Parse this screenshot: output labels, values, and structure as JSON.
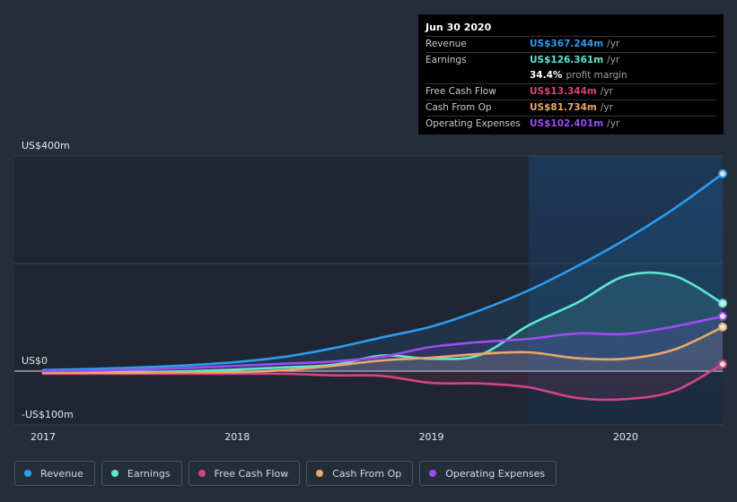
{
  "tooltip": {
    "date": "Jun 30 2020",
    "unit": "/yr",
    "rows": [
      {
        "label": "Revenue",
        "value": "US$367.244m",
        "color": "#2d9bf0"
      },
      {
        "label": "Earnings",
        "value": "US$126.361m",
        "color": "#5ee6d0"
      },
      {
        "label": "",
        "value": "34.4%",
        "suffix": "profit margin",
        "color": "#ffffff"
      },
      {
        "label": "Free Cash Flow",
        "value": "US$13.344m",
        "color": "#d3457f"
      },
      {
        "label": "Cash From Op",
        "value": "US$81.734m",
        "color": "#e8a86a"
      },
      {
        "label": "Operating Expenses",
        "value": "US$102.401m",
        "color": "#9d4cf0"
      }
    ]
  },
  "chart_data": {
    "type": "line",
    "title": "",
    "ylim": [
      -100,
      400
    ],
    "yticks": [
      {
        "value": 400,
        "label": "US$400m"
      },
      {
        "value": 0,
        "label": "US$0"
      },
      {
        "value": -100,
        "label": "-US$100m"
      }
    ],
    "xlim": [
      2017.0,
      2020.5
    ],
    "xticks": [
      {
        "value": 2017,
        "label": "2017"
      },
      {
        "value": 2018,
        "label": "2018"
      },
      {
        "value": 2019,
        "label": "2019"
      },
      {
        "value": 2020,
        "label": "2020"
      }
    ],
    "highlight_start": 2019.5,
    "x": [
      2017.0,
      2017.25,
      2017.5,
      2017.75,
      2018.0,
      2018.25,
      2018.5,
      2018.75,
      2019.0,
      2019.25,
      2019.5,
      2019.75,
      2020.0,
      2020.25,
      2020.5
    ],
    "series": [
      {
        "name": "Revenue",
        "color": "#2d9bf0",
        "values": [
          2,
          4,
          7,
          11,
          17,
          27,
          43,
          63,
          83,
          113,
          150,
          195,
          245,
          302,
          367
        ]
      },
      {
        "name": "Earnings",
        "color": "#5ee6d0",
        "values": [
          -3,
          -3,
          -2,
          0,
          3,
          7,
          12,
          29,
          23,
          30,
          85,
          127,
          177,
          177,
          126
        ]
      },
      {
        "name": "Free Cash Flow",
        "color": "#d3457f",
        "values": [
          -5,
          -5,
          -5,
          -5,
          -5,
          -5,
          -8,
          -9,
          -22,
          -23,
          -30,
          -50,
          -52,
          -37,
          13
        ]
      },
      {
        "name": "Cash From Op",
        "color": "#e8a86a",
        "values": [
          -3,
          -3,
          -3,
          -2,
          -2,
          2,
          10,
          20,
          25,
          32,
          35,
          24,
          23,
          40,
          82
        ]
      },
      {
        "name": "Operating Expenses",
        "color": "#9d4cf0",
        "values": [
          0,
          1,
          3,
          6,
          10,
          14,
          18,
          27,
          45,
          54,
          60,
          70,
          69,
          83,
          102
        ]
      }
    ]
  },
  "legend": [
    {
      "label": "Revenue",
      "color": "#2d9bf0"
    },
    {
      "label": "Earnings",
      "color": "#5ee6d0"
    },
    {
      "label": "Free Cash Flow",
      "color": "#d3457f"
    },
    {
      "label": "Cash From Op",
      "color": "#e8a86a"
    },
    {
      "label": "Operating Expenses",
      "color": "#9d4cf0"
    }
  ]
}
